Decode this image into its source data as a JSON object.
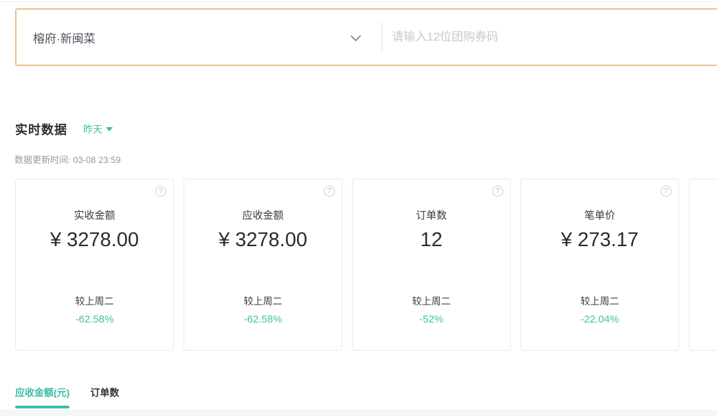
{
  "topbar": {
    "shop_selector": {
      "value": "榕府·新闽菜"
    },
    "coupon_input": {
      "placeholder": "请输入12位团购券码"
    }
  },
  "realtime": {
    "title": "实时数据",
    "range_label": "昨天",
    "update_time": "数据更新时间: 03-08 23:59",
    "cards": [
      {
        "label": "实收金额",
        "value": "¥ 3278.00",
        "compare_label": "较上周二",
        "change": "-62.58%"
      },
      {
        "label": "应收金额",
        "value": "¥ 3278.00",
        "compare_label": "较上周二",
        "change": "-62.58%"
      },
      {
        "label": "订单数",
        "value": "12",
        "compare_label": "较上周二",
        "change": "-52%"
      },
      {
        "label": "笔单价",
        "value": "¥ 273.17",
        "compare_label": "较上周二",
        "change": "-22.04%"
      }
    ]
  },
  "tabs": [
    {
      "label": "应收金额(元)"
    },
    {
      "label": "订单数"
    }
  ],
  "icons": {
    "help": "?"
  },
  "colors": {
    "accent_teal": "#3bbda5",
    "change_teal": "#41c2a8",
    "border_orange": "#f0bd85",
    "card_border": "#eaeaea",
    "chart_strip_bg": "#f5f6f8"
  }
}
